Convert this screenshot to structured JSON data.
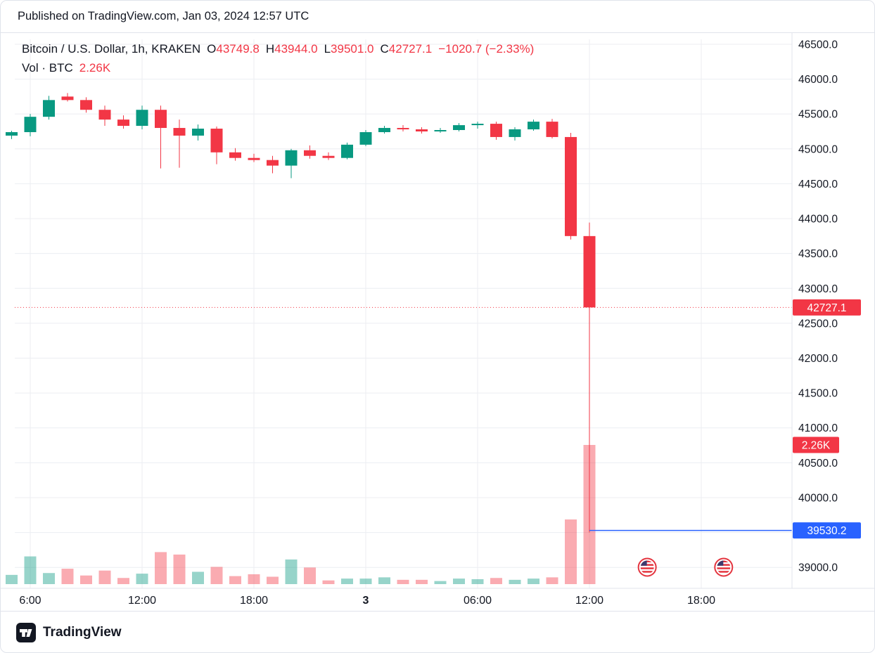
{
  "header": {
    "published": "Published on TradingView.com, Jan 03, 2024 12:57 UTC"
  },
  "legend": {
    "title": "Bitcoin / U.S. Dollar, 1h, KRAKEN",
    "ohlc": [
      {
        "label": "O",
        "value": "43749.8"
      },
      {
        "label": "H",
        "value": "43944.0"
      },
      {
        "label": "L",
        "value": "39501.0"
      },
      {
        "label": "C",
        "value": "42727.1"
      }
    ],
    "change": "−1020.7 (−2.33%)",
    "vol_label": "Vol · BTC",
    "vol_value": "2.26K"
  },
  "price_labels": {
    "last": {
      "value": "42727.1",
      "price": 42727.1,
      "color": "#f23645"
    },
    "volume": {
      "value": "2.26K",
      "color": "#f23645"
    },
    "low_line": {
      "value": "39530.2",
      "price": 39530.2,
      "color": "#2962ff"
    }
  },
  "colors": {
    "up": "#089981",
    "down": "#f23645",
    "vol_up": "rgba(8,153,129,0.42)",
    "vol_down": "rgba(242,54,69,0.42)",
    "grid": "#eceef2",
    "axis_line": "#e0e3eb",
    "text": "#131722",
    "accent_blue": "#2962ff",
    "flag_red": "#e4353f",
    "flag_blue": "#3c3b6e"
  },
  "events": [
    {
      "time_hour": 39.1,
      "name": "us-flag-event"
    },
    {
      "time_hour": 43.2,
      "name": "us-flag-event"
    }
  ],
  "footer": {
    "brand": "TradingView"
  },
  "chart_data": {
    "type": "candlestick",
    "symbol": "Bitcoin / U.S. Dollar",
    "interval": "1h",
    "exchange": "KRAKEN",
    "title": "Bitcoin / U.S. Dollar, 1h, KRAKEN",
    "last_price": 42727.1,
    "last_change": "−1020.7 (−2.33%)",
    "low_marker_price": 39530.2,
    "x_unit": "hours (Jan 2 05:00 → Jan 3 12:00)",
    "y_axis": {
      "min_visible": 38740,
      "max_visible": 46570,
      "grid": [
        46500,
        46000,
        45500,
        45000,
        44500,
        44000,
        43500,
        43000,
        42500,
        42000,
        41500,
        41000,
        40500,
        40000,
        39500,
        39000
      ],
      "ticks": [
        {
          "value": 46500,
          "label": "46500.0"
        },
        {
          "value": 46000,
          "label": "46000.0"
        },
        {
          "value": 45500,
          "label": "45500.0"
        },
        {
          "value": 45000,
          "label": "45000.0"
        },
        {
          "value": 44500,
          "label": "44500.0"
        },
        {
          "value": 44000,
          "label": "44000.0"
        },
        {
          "value": 43500,
          "label": "43500.0"
        },
        {
          "value": 43000,
          "label": "43000.0"
        },
        {
          "value": 42500,
          "label": "42500.0"
        },
        {
          "value": 42000,
          "label": "42000.0"
        },
        {
          "value": 41500,
          "label": "41500.0"
        },
        {
          "value": 41000,
          "label": "41000.0"
        },
        {
          "value": 40500,
          "label": "40500.0"
        },
        {
          "value": 40000,
          "label": "40000.0"
        },
        {
          "value": 39000,
          "label": "39000.0"
        }
      ]
    },
    "x_axis": {
      "ticks": [
        {
          "t": 6,
          "label": "6:00",
          "bold": false
        },
        {
          "t": 12,
          "label": "12:00",
          "bold": false
        },
        {
          "t": 18,
          "label": "18:00",
          "bold": false
        },
        {
          "t": 24,
          "label": "3",
          "bold": true
        },
        {
          "t": 30,
          "label": "06:00",
          "bold": false
        },
        {
          "t": 36,
          "label": "12:00",
          "bold": false
        },
        {
          "t": 42,
          "label": "18:00",
          "bold": false
        }
      ]
    },
    "candles": [
      [
        5,
        45190,
        45260,
        45140,
        45240
      ],
      [
        6,
        45240,
        45500,
        45180,
        45460
      ],
      [
        7,
        45460,
        45760,
        45420,
        45700
      ],
      [
        8,
        45750,
        45800,
        45680,
        45700
      ],
      [
        9,
        45700,
        45740,
        45520,
        45560
      ],
      [
        10,
        45560,
        45620,
        45330,
        45420
      ],
      [
        11,
        45420,
        45480,
        45290,
        45330
      ],
      [
        12,
        45330,
        45620,
        45280,
        45560
      ],
      [
        13,
        45560,
        45620,
        44720,
        45300
      ],
      [
        14,
        45300,
        45420,
        44730,
        45190
      ],
      [
        15,
        45190,
        45350,
        45120,
        45290
      ],
      [
        16,
        45290,
        45320,
        44780,
        44950
      ],
      [
        17,
        44950,
        45010,
        44830,
        44870
      ],
      [
        18,
        44870,
        44930,
        44810,
        44840
      ],
      [
        19,
        44840,
        44900,
        44650,
        44760
      ],
      [
        20,
        44760,
        45000,
        44580,
        44980
      ],
      [
        21,
        44980,
        45050,
        44860,
        44900
      ],
      [
        22,
        44900,
        44950,
        44840,
        44870
      ],
      [
        23,
        44870,
        45090,
        44850,
        45060
      ],
      [
        24,
        45060,
        45270,
        45040,
        45240
      ],
      [
        25,
        45240,
        45330,
        45220,
        45300
      ],
      [
        26,
        45300,
        45340,
        45250,
        45280
      ],
      [
        27,
        45280,
        45310,
        45220,
        45250
      ],
      [
        28,
        45250,
        45300,
        45230,
        45270
      ],
      [
        29,
        45270,
        45370,
        45250,
        45340
      ],
      [
        30,
        45340,
        45390,
        45290,
        45360
      ],
      [
        31,
        45360,
        45390,
        45130,
        45170
      ],
      [
        32,
        45170,
        45310,
        45120,
        45280
      ],
      [
        33,
        45280,
        45420,
        45260,
        45390
      ],
      [
        34,
        45390,
        45430,
        45150,
        45170
      ],
      [
        35,
        45170,
        45230,
        43700,
        43750
      ],
      [
        36,
        43749.8,
        43944.0,
        39501.0,
        42727.1
      ]
    ],
    "volumes_k": [
      [
        5,
        0.15
      ],
      [
        6,
        0.45
      ],
      [
        7,
        0.18
      ],
      [
        8,
        0.25
      ],
      [
        9,
        0.14
      ],
      [
        10,
        0.22
      ],
      [
        11,
        0.1
      ],
      [
        12,
        0.17
      ],
      [
        13,
        0.52
      ],
      [
        14,
        0.48
      ],
      [
        15,
        0.2
      ],
      [
        16,
        0.28
      ],
      [
        17,
        0.13
      ],
      [
        18,
        0.16
      ],
      [
        19,
        0.12
      ],
      [
        20,
        0.4
      ],
      [
        21,
        0.27
      ],
      [
        22,
        0.06
      ],
      [
        23,
        0.09
      ],
      [
        24,
        0.09
      ],
      [
        25,
        0.11
      ],
      [
        26,
        0.07
      ],
      [
        27,
        0.07
      ],
      [
        28,
        0.05
      ],
      [
        29,
        0.09
      ],
      [
        30,
        0.08
      ],
      [
        31,
        0.1
      ],
      [
        32,
        0.07
      ],
      [
        33,
        0.09
      ],
      [
        34,
        0.11
      ],
      [
        35,
        1.05
      ],
      [
        36,
        2.26
      ]
    ]
  }
}
